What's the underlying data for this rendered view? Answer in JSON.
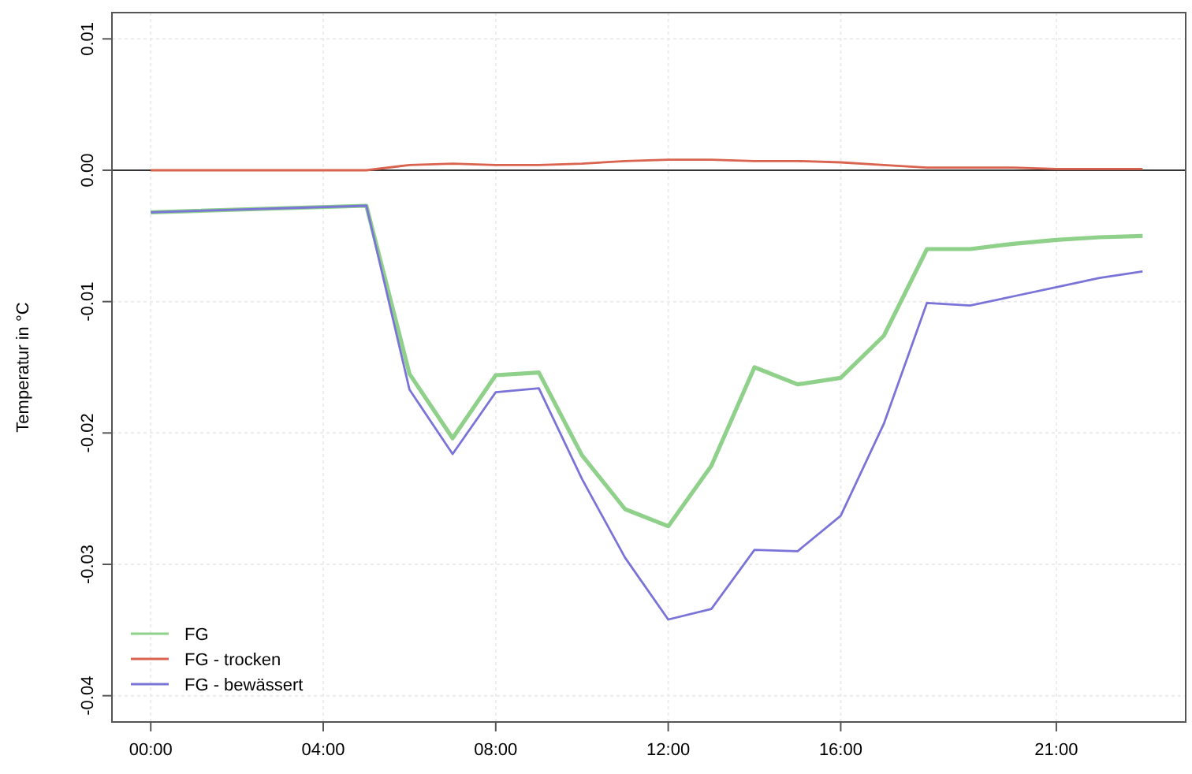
{
  "chart_data": {
    "type": "line",
    "ylabel": "Temperatur in °C",
    "x": [
      0,
      5,
      6,
      7,
      8,
      9,
      10,
      11,
      12,
      13,
      14,
      15,
      16,
      17,
      18,
      19,
      20,
      21,
      22,
      23
    ],
    "series": [
      {
        "name": "FG",
        "color": "#8fd18a",
        "values": [
          -0.0032,
          -0.0027,
          -0.0155,
          -0.0204,
          -0.0156,
          -0.0154,
          -0.0217,
          -0.0258,
          -0.0271,
          -0.0225,
          -0.015,
          -0.0163,
          -0.0158,
          -0.0126,
          -0.006,
          -0.006,
          -0.0056,
          -0.0053,
          -0.0051,
          -0.005
        ]
      },
      {
        "name": "FG - trocken",
        "color": "#d9634e",
        "values": [
          0,
          0,
          0.0004,
          0.0005,
          0.0004,
          0.0004,
          0.0005,
          0.0007,
          0.0008,
          0.0008,
          0.0007,
          0.0007,
          0.0006,
          0.0004,
          0.0002,
          0.0002,
          0.0002,
          0.0001,
          0.0001,
          0.0001
        ]
      },
      {
        "name": "FG - bewässert",
        "color": "#7b74d8",
        "values": [
          -0.0032,
          -0.0027,
          -0.0167,
          -0.0216,
          -0.0169,
          -0.0166,
          -0.0235,
          -0.0295,
          -0.0342,
          -0.0334,
          -0.0289,
          -0.029,
          -0.0263,
          -0.0193,
          -0.0101,
          -0.0103,
          -0.0096,
          -0.0089,
          -0.0082,
          -0.0077
        ]
      }
    ],
    "xlim": [
      -0.9,
      24
    ],
    "ylim": [
      -0.042,
      0.012
    ],
    "xticks": [
      {
        "value": 0,
        "label": "00:00"
      },
      {
        "value": 4,
        "label": "04:00"
      },
      {
        "value": 8,
        "label": "08:00"
      },
      {
        "value": 12,
        "label": "12:00"
      },
      {
        "value": 16,
        "label": "16:00"
      },
      {
        "value": 21,
        "label": "21:00"
      }
    ],
    "yticks": [
      {
        "value": 0.01,
        "label": "0.01"
      },
      {
        "value": 0,
        "label": "0.00"
      },
      {
        "value": -0.01,
        "label": "-0.01"
      },
      {
        "value": -0.02,
        "label": "-0.02"
      },
      {
        "value": -0.03,
        "label": "-0.03"
      },
      {
        "value": -0.04,
        "label": "-0.04"
      }
    ],
    "ref_lines": [
      {
        "axis": "y",
        "value": 0,
        "label": null,
        "color": "#333333"
      }
    ],
    "grid": true,
    "legend": "bottom left",
    "line_style": "solid",
    "marker": "none"
  }
}
